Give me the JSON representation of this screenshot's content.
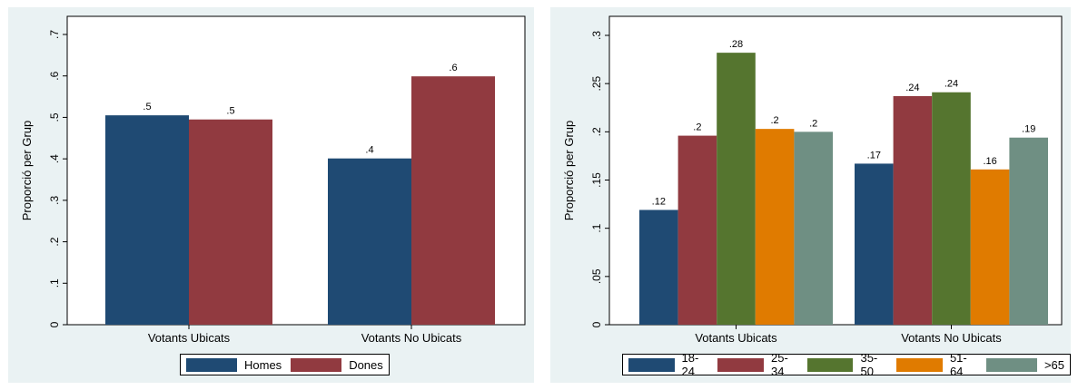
{
  "chart_data": [
    {
      "type": "bar",
      "ylabel": "Proporció per Grup",
      "ylim": [
        0,
        0.7
      ],
      "yticks": [
        "0",
        ".1",
        ".2",
        ".3",
        ".4",
        ".5",
        ".6",
        ".7"
      ],
      "yvalues": [
        0,
        0.1,
        0.2,
        0.3,
        0.4,
        0.5,
        0.6,
        0.7
      ],
      "categories": [
        "Votants Ubicats",
        "Votants No Ubicats"
      ],
      "series": [
        {
          "name": "Homes",
          "color": "#1f4a73",
          "values": [
            0.505,
            0.401
          ],
          "labels": [
            ".5",
            ".4"
          ]
        },
        {
          "name": "Dones",
          "color": "#913a40",
          "values": [
            0.495,
            0.599
          ],
          "labels": [
            ".5",
            ".6"
          ]
        }
      ],
      "legend_position": "bottom",
      "grid": false
    },
    {
      "type": "bar",
      "ylabel": "Proporció per Grup",
      "ylim": [
        0,
        0.3
      ],
      "yticks": [
        "0",
        ".05",
        ".1",
        ".15",
        ".2",
        ".25",
        ".3"
      ],
      "yvalues": [
        0,
        0.05,
        0.1,
        0.15,
        0.2,
        0.25,
        0.3
      ],
      "categories": [
        "Votants Ubicats",
        "Votants No Ubicats"
      ],
      "series": [
        {
          "name": "18-24",
          "color": "#1f4a73",
          "values": [
            0.119,
            0.167
          ],
          "labels": [
            ".12",
            ".17"
          ]
        },
        {
          "name": "25-34",
          "color": "#913a40",
          "values": [
            0.196,
            0.237
          ],
          "labels": [
            ".2",
            ".24"
          ]
        },
        {
          "name": "35-50",
          "color": "#55752f",
          "values": [
            0.282,
            0.241
          ],
          "labels": [
            ".28",
            ".24"
          ]
        },
        {
          "name": "51-64",
          "color": "#e07b00",
          "values": [
            0.203,
            0.161
          ],
          "labels": [
            ".2",
            ".16"
          ]
        },
        {
          "name": ">65",
          "color": "#6f8f83",
          "values": [
            0.2,
            0.194
          ],
          "labels": [
            ".2",
            ".19"
          ]
        }
      ],
      "legend_position": "bottom",
      "grid": false
    }
  ]
}
